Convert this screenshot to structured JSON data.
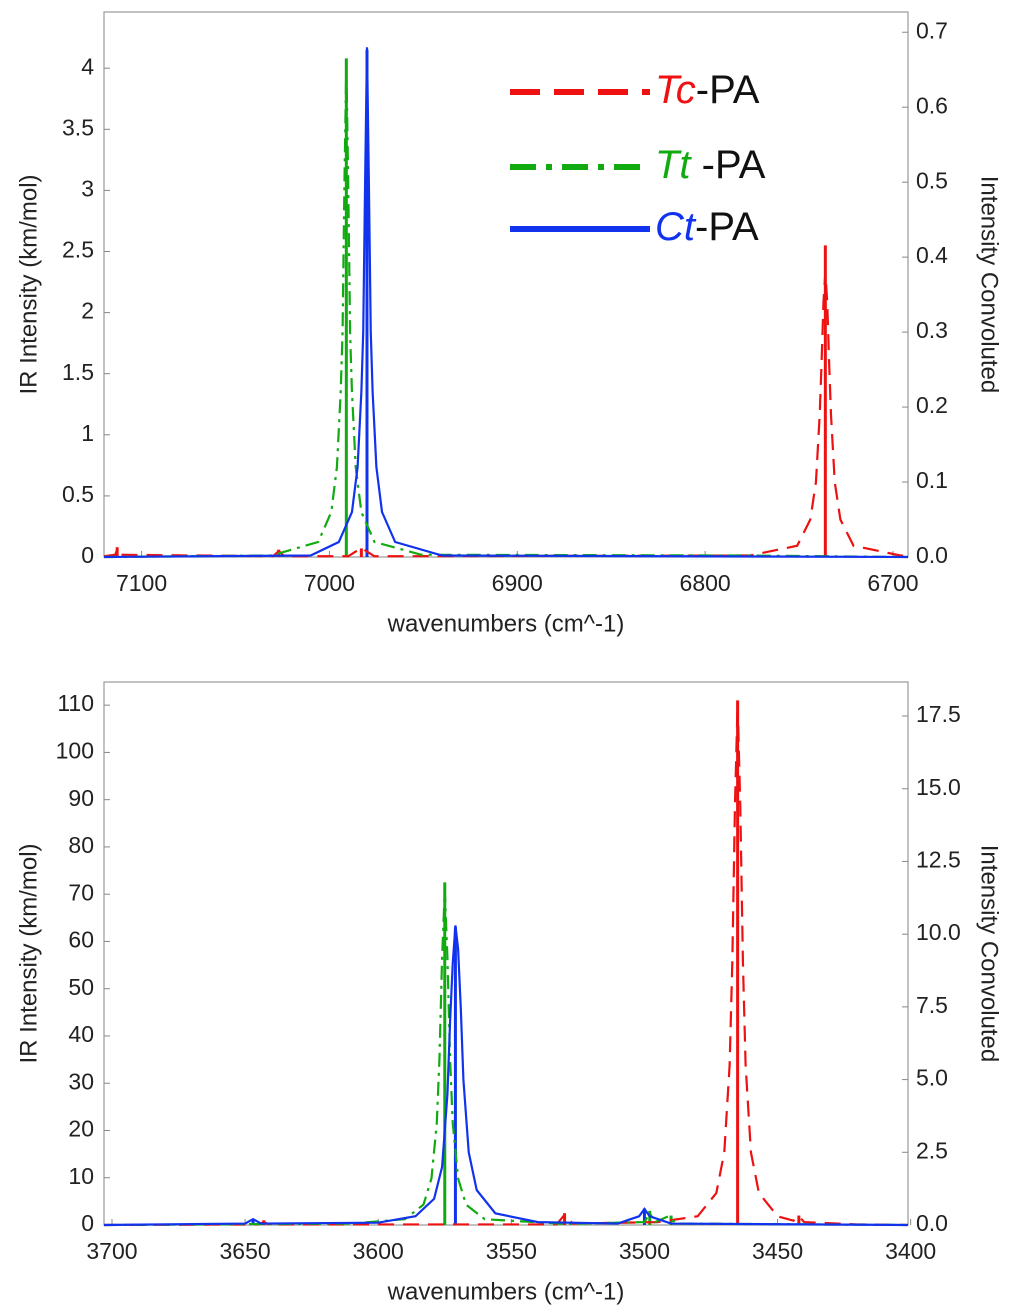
{
  "chart_data": [
    {
      "type": "line",
      "xlabel": "wavenumbers (cm^-1)",
      "ylabel": "IR Intensity (km/mol)",
      "y2label": "Intensity Convoluted",
      "xlim": [
        7120,
        6692
      ],
      "ylim": [
        0,
        4.46
      ],
      "y2lim": [
        0,
        0.727
      ],
      "xticks": [
        7100,
        7000,
        6900,
        6800,
        6700
      ],
      "yticks": [
        0,
        0.5,
        1,
        1.5,
        2,
        2.5,
        3,
        3.5,
        4
      ],
      "y2ticks": [
        {
          "value": 0,
          "label": "0.0"
        },
        0.1,
        0.2,
        0.3,
        0.4,
        0.5,
        0.6,
        0.7
      ],
      "legend": "upper right",
      "series": [
        {
          "color": "#ee1111",
          "x": [
            7113,
            7027,
            6983,
            6736
          ],
          "values": [
            0.08,
            0.06,
            0.07,
            2.55
          ]
        },
        {
          "color": "#11aa11",
          "x": [
            6991
          ],
          "values": [
            4.08
          ]
        },
        {
          "color": "#1133ee",
          "x": [
            6980
          ],
          "values": [
            4.15
          ]
        },
        {
          "name": "Tc-PA",
          "color": "#ee1111",
          "axis": "y2",
          "linestyle": "dashed",
          "x": [
            7120,
            7114,
            7113,
            7112,
            7030,
            7027,
            7024,
            6990,
            6983,
            6976,
            6776,
            6751,
            6744,
            6741,
            6739,
            6738,
            6737,
            6736,
            6735,
            6734,
            6733,
            6731,
            6728,
            6721,
            6696,
            6692
          ],
          "values": [
            0.001,
            0.003,
            0.01,
            0.003,
            0.001,
            0.008,
            0.001,
            0.001,
            0.012,
            0.001,
            0.002,
            0.015,
            0.05,
            0.1,
            0.19,
            0.26,
            0.34,
            0.38,
            0.34,
            0.26,
            0.19,
            0.1,
            0.05,
            0.015,
            0.002,
            0.001
          ]
        },
        {
          "name": "Tt -PA",
          "color": "#11aa11",
          "axis": "y2",
          "linestyle": "dashdot",
          "x": [
            7120,
            7031,
            7006,
            6999,
            6996,
            6994,
            6993,
            6992,
            6991,
            6990,
            6989,
            6988,
            6986,
            6983,
            6976,
            6951,
            6780,
            6692
          ],
          "values": [
            0,
            0.002,
            0.02,
            0.06,
            0.12,
            0.22,
            0.3,
            0.5,
            0.66,
            0.5,
            0.3,
            0.22,
            0.12,
            0.06,
            0.02,
            0.003,
            0.002,
            0
          ]
        },
        {
          "name": "Ct-PA",
          "color": "#1133ee",
          "axis": "y2",
          "linestyle": "solid",
          "x": [
            7120,
            7010,
            6995,
            6988,
            6985,
            6983,
            6982,
            6981,
            6980,
            6979,
            6978,
            6977,
            6975,
            6972,
            6965,
            6940,
            6692
          ],
          "values": [
            0,
            0.002,
            0.02,
            0.06,
            0.12,
            0.22,
            0.3,
            0.5,
            0.68,
            0.5,
            0.3,
            0.22,
            0.12,
            0.06,
            0.02,
            0.002,
            0
          ]
        }
      ]
    },
    {
      "type": "line",
      "xlabel": "wavenumbers (cm^-1)",
      "ylabel": "IR Intensity (km/mol)",
      "y2label": "Intensity Convoluted",
      "xlim": [
        3703,
        3401
      ],
      "ylim": [
        0,
        114.9
      ],
      "y2lim": [
        0,
        18.67
      ],
      "xticks": [
        3700,
        3650,
        3600,
        3550,
        3500,
        3450,
        3400
      ],
      "yticks": [
        0,
        10,
        20,
        30,
        40,
        50,
        60,
        70,
        80,
        90,
        100,
        110
      ],
      "y2ticks": [
        {
          "value": 0,
          "label": "0.0"
        },
        2.5,
        {
          "value": 5,
          "label": "5.0"
        },
        7.5,
        {
          "value": 10,
          "label": "10.0"
        },
        12.5,
        {
          "value": 15,
          "label": "15.0"
        },
        17.5
      ],
      "series": [
        {
          "color": "#ee1111",
          "x": [
            3643,
            3530,
            3465,
            3442
          ],
          "values": [
            1,
            2.5,
            111,
            2
          ]
        },
        {
          "color": "#11aa11",
          "x": [
            3575,
            3498,
            3490
          ],
          "values": [
            72.5,
            3,
            2
          ]
        },
        {
          "color": "#1133ee",
          "x": [
            3647,
            3571,
            3500
          ],
          "values": [
            1,
            63,
            3.5
          ]
        },
        {
          "color": "#ee1111",
          "axis": "y2",
          "linestyle": "dashed",
          "x": [
            3703,
            3645,
            3643,
            3641,
            3533,
            3530,
            3527,
            3495,
            3480,
            3473,
            3470,
            3468,
            3467,
            3466,
            3465,
            3464,
            3463,
            3462,
            3460,
            3457,
            3450,
            3444,
            3442,
            3440,
            3420,
            3401
          ],
          "values": [
            0,
            0.02,
            0.1,
            0.02,
            0.02,
            0.35,
            0.05,
            0.1,
            0.3,
            1.1,
            2.5,
            5.5,
            9,
            14.4,
            18,
            14.4,
            9,
            5.5,
            2.5,
            1.1,
            0.3,
            0.15,
            0.3,
            0.1,
            0.02,
            0
          ]
        },
        {
          "color": "#11aa11",
          "axis": "y2",
          "linestyle": "dashdot",
          "x": [
            3703,
            3610,
            3590,
            3583,
            3580,
            3578,
            3577,
            3576,
            3575,
            3574,
            3573,
            3572,
            3570,
            3567,
            3560,
            3530,
            3500,
            3498,
            3496,
            3491,
            3488,
            3401
          ],
          "values": [
            0,
            0.05,
            0.2,
            0.7,
            1.6,
            3.5,
            5.7,
            9.2,
            11.5,
            9.2,
            5.7,
            3.5,
            1.6,
            0.7,
            0.2,
            0.04,
            0.1,
            0.4,
            0.1,
            0.3,
            0.05,
            0
          ]
        },
        {
          "color": "#1133ee",
          "axis": "y2",
          "linestyle": "solid",
          "x": [
            3703,
            3650,
            3647,
            3644,
            3600,
            3586,
            3579,
            3576,
            3574,
            3573,
            3572,
            3571,
            3570,
            3569,
            3568,
            3566,
            3563,
            3556,
            3540,
            3510,
            3502,
            3500,
            3498,
            3490,
            3401
          ],
          "values": [
            0,
            0.05,
            0.2,
            0.05,
            0.08,
            0.3,
            0.9,
            2,
            4.5,
            7,
            9,
            10.3,
            9.5,
            7.5,
            5,
            2.5,
            1.2,
            0.4,
            0.1,
            0.05,
            0.3,
            0.55,
            0.3,
            0.05,
            0
          ]
        }
      ]
    }
  ]
}
